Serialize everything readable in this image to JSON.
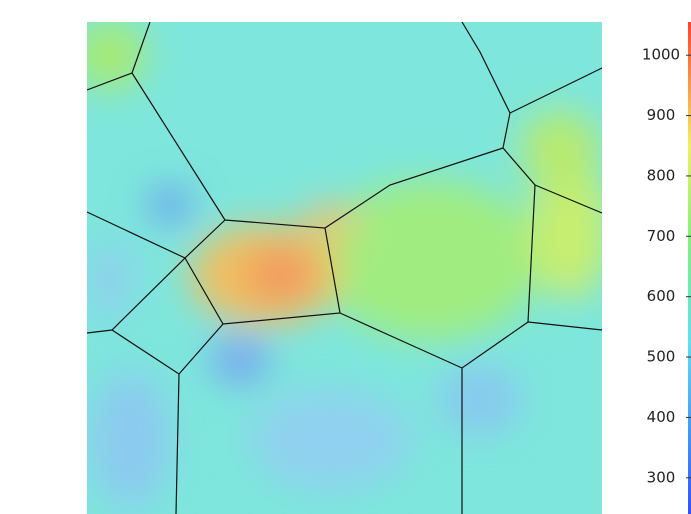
{
  "chart_data": {
    "type": "heatmap",
    "colorbar": {
      "clim": [
        240,
        1055
      ],
      "ticks": [
        300,
        400,
        500,
        600,
        700,
        800,
        900,
        1000
      ]
    }
  }
}
